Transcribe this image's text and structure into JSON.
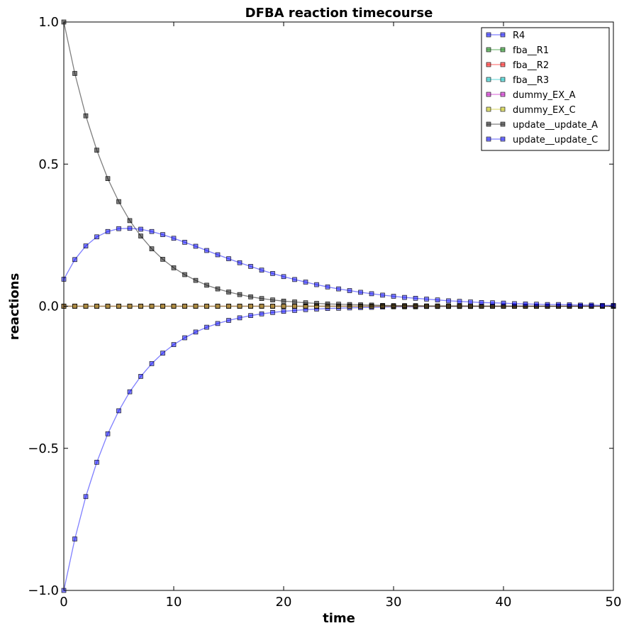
{
  "chart_data": {
    "type": "line",
    "title": "DFBA reaction timecourse",
    "xlabel": "time",
    "ylabel": "reactions",
    "xlim": [
      0,
      50
    ],
    "ylim": [
      -1.0,
      1.0
    ],
    "x_ticks": [
      0,
      10,
      20,
      30,
      40,
      50
    ],
    "x_tick_labels": [
      "0",
      "10",
      "20",
      "30",
      "40",
      "50"
    ],
    "y_ticks": [
      -1.0,
      -0.5,
      0.0,
      0.5,
      1.0
    ],
    "y_tick_labels": [
      "−1.0",
      "−0.5",
      "0.0",
      "0.5",
      "1.0"
    ],
    "grid": false,
    "legend_position": "top-right",
    "x": [
      0,
      1,
      2,
      3,
      4,
      5,
      6,
      7,
      8,
      9,
      10,
      11,
      12,
      13,
      14,
      15,
      16,
      17,
      18,
      19,
      20,
      21,
      22,
      23,
      24,
      25,
      26,
      27,
      28,
      29,
      30,
      31,
      32,
      33,
      34,
      35,
      36,
      37,
      38,
      39,
      40,
      41,
      42,
      43,
      44,
      45,
      46,
      47,
      48,
      49,
      50
    ],
    "series": [
      {
        "name": "R4",
        "color": "#0000ff",
        "values": [
          -1.0,
          -0.819,
          -0.67,
          -0.549,
          -0.449,
          -0.368,
          -0.301,
          -0.247,
          -0.202,
          -0.165,
          -0.135,
          -0.111,
          -0.091,
          -0.074,
          -0.061,
          -0.05,
          -0.041,
          -0.033,
          -0.027,
          -0.022,
          -0.018,
          -0.015,
          -0.012,
          -0.01,
          -0.008,
          -0.007,
          -0.006,
          -0.005,
          -0.004,
          -0.003,
          -0.002,
          -0.002,
          -0.002,
          -0.001,
          -0.001,
          -0.001,
          -0.001,
          -0.001,
          0,
          0,
          0,
          0,
          0,
          0,
          0,
          0,
          0,
          0,
          0,
          0,
          0
        ]
      },
      {
        "name": "fba__R1",
        "color": "#008000",
        "values": [
          0,
          0,
          0,
          0,
          0,
          0,
          0,
          0,
          0,
          0,
          0,
          0,
          0,
          0,
          0,
          0,
          0,
          0,
          0,
          0,
          0,
          0,
          0,
          0,
          0,
          0,
          0,
          0,
          0,
          0,
          0,
          0,
          0,
          0,
          0,
          0,
          0,
          0,
          0,
          0,
          0,
          0,
          0,
          0,
          0,
          0,
          0,
          0,
          0,
          0,
          0
        ]
      },
      {
        "name": "fba__R2",
        "color": "#ff0000",
        "values": [
          0,
          0,
          0,
          0,
          0,
          0,
          0,
          0,
          0,
          0,
          0,
          0,
          0,
          0,
          0,
          0,
          0,
          0,
          0,
          0,
          0,
          0,
          0,
          0,
          0,
          0,
          0,
          0,
          0,
          0,
          0,
          0,
          0,
          0,
          0,
          0,
          0,
          0,
          0,
          0,
          0,
          0,
          0,
          0,
          0,
          0,
          0,
          0,
          0,
          0,
          0
        ]
      },
      {
        "name": "fba__R3",
        "color": "#00bfbf",
        "values": [
          0,
          0,
          0,
          0,
          0,
          0,
          0,
          0,
          0,
          0,
          0,
          0,
          0,
          0,
          0,
          0,
          0,
          0,
          0,
          0,
          0,
          0,
          0,
          0,
          0,
          0,
          0,
          0,
          0,
          0,
          0,
          0,
          0,
          0,
          0,
          0,
          0,
          0,
          0,
          0,
          0,
          0,
          0,
          0,
          0,
          0,
          0,
          0,
          0,
          0,
          0
        ]
      },
      {
        "name": "dummy_EX_A",
        "color": "#bf00bf",
        "values": [
          0,
          0,
          0,
          0,
          0,
          0,
          0,
          0,
          0,
          0,
          0,
          0,
          0,
          0,
          0,
          0,
          0,
          0,
          0,
          0,
          0,
          0,
          0,
          0,
          0,
          0,
          0,
          0,
          0,
          0,
          0,
          0,
          0,
          0,
          0,
          0,
          0,
          0,
          0,
          0,
          0,
          0,
          0,
          0,
          0,
          0,
          0,
          0,
          0,
          0,
          0
        ]
      },
      {
        "name": "dummy_EX_C",
        "color": "#bfbf00",
        "values": [
          0,
          0,
          0,
          0,
          0,
          0,
          0,
          0,
          0,
          0,
          0,
          0,
          0,
          0,
          0,
          0,
          0,
          0,
          0,
          0,
          0,
          0,
          0,
          0,
          0,
          0,
          0,
          0,
          0,
          0,
          0,
          0,
          0,
          0,
          0,
          0,
          0,
          0,
          0,
          0,
          0,
          0,
          0,
          0,
          0,
          0,
          0,
          0,
          0,
          0,
          0
        ]
      },
      {
        "name": "update__update_A",
        "color": "#000000",
        "values": [
          1.0,
          0.819,
          0.67,
          0.549,
          0.449,
          0.368,
          0.301,
          0.247,
          0.202,
          0.165,
          0.135,
          0.111,
          0.091,
          0.074,
          0.061,
          0.05,
          0.041,
          0.033,
          0.027,
          0.022,
          0.018,
          0.015,
          0.012,
          0.01,
          0.008,
          0.007,
          0.006,
          0.005,
          0.004,
          0.003,
          0.002,
          0.002,
          0.002,
          0.001,
          0.001,
          0.001,
          0.001,
          0.001,
          0,
          0,
          0,
          0,
          0,
          0,
          0,
          0,
          0,
          0,
          0,
          0,
          0
        ]
      },
      {
        "name": "update__update_C",
        "color": "#0000ff",
        "values": [
          0.095,
          0.164,
          0.212,
          0.244,
          0.263,
          0.273,
          0.274,
          0.271,
          0.263,
          0.252,
          0.239,
          0.225,
          0.211,
          0.196,
          0.181,
          0.167,
          0.153,
          0.14,
          0.127,
          0.115,
          0.104,
          0.094,
          0.085,
          0.076,
          0.068,
          0.061,
          0.055,
          0.049,
          0.044,
          0.039,
          0.035,
          0.031,
          0.028,
          0.025,
          0.022,
          0.019,
          0.017,
          0.015,
          0.013,
          0.012,
          0.011,
          0.009,
          0.008,
          0.007,
          0.006,
          0.006,
          0.005,
          0.004,
          0.004,
          0.003,
          0.003
        ]
      }
    ]
  }
}
